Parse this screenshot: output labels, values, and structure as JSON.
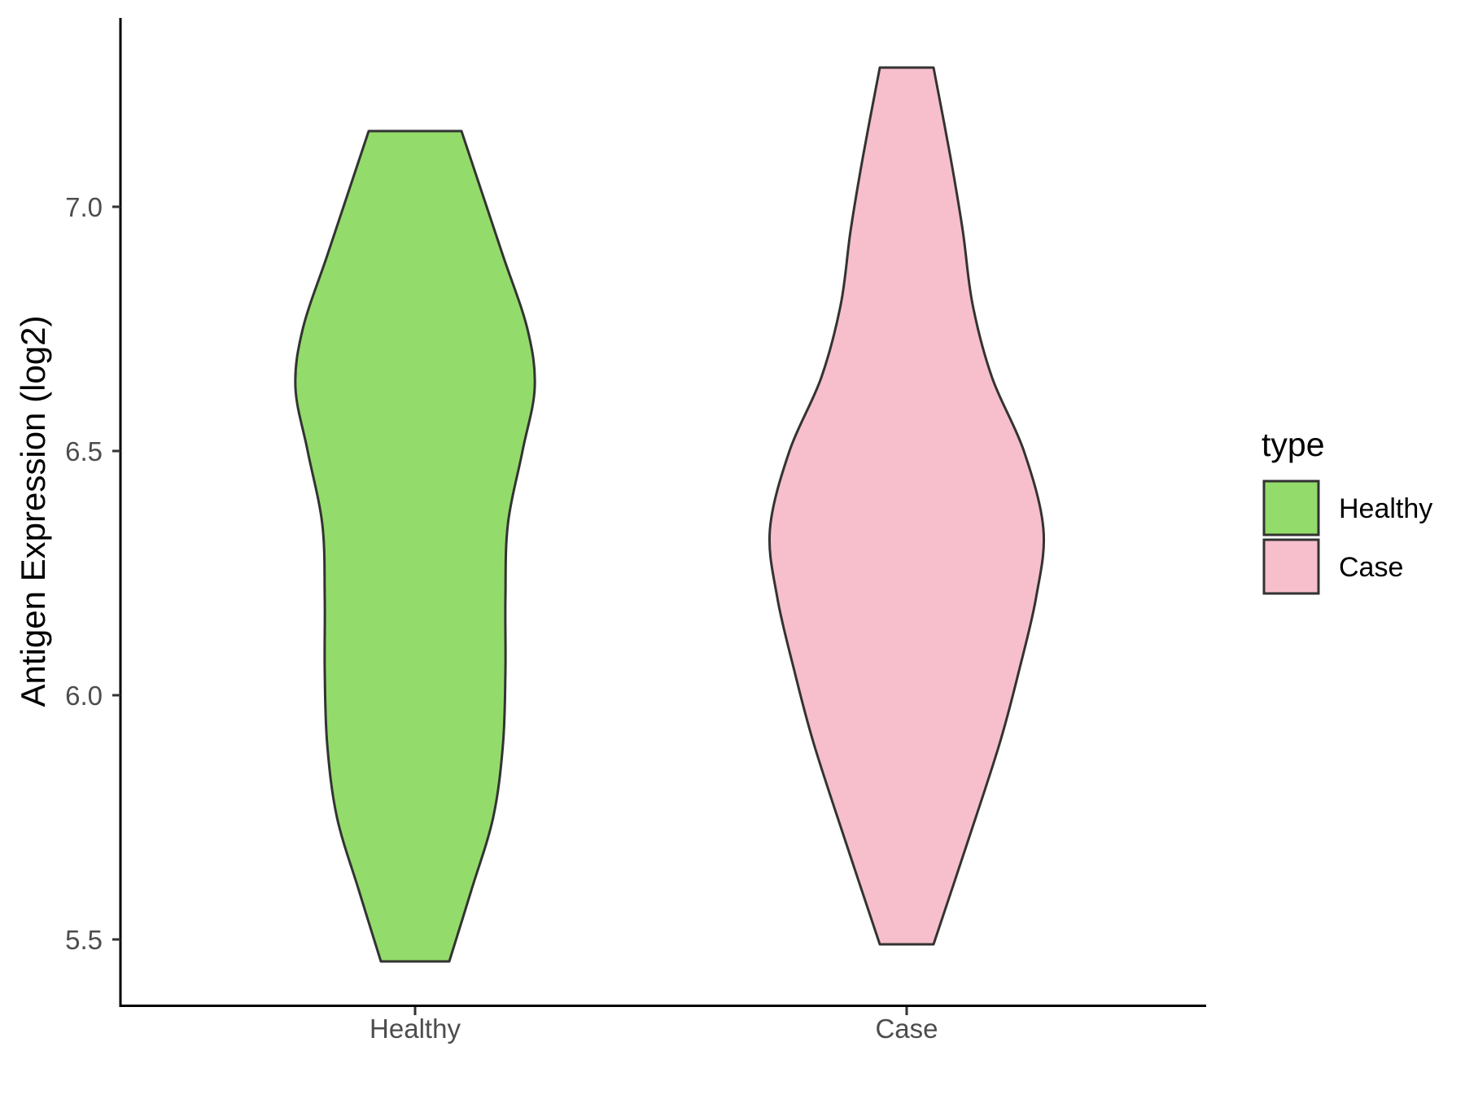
{
  "chart_data": {
    "type": "violin",
    "xlabel": "",
    "ylabel": "Antigen Expression (log2)",
    "ylim": [
      5.37,
      7.38
    ],
    "yticks": [
      "5.5",
      "6.0",
      "6.5",
      "7.0"
    ],
    "categories": [
      "Healthy",
      "Case"
    ],
    "series": [
      {
        "name": "Healthy",
        "color": "#93dc6b",
        "min": 5.455,
        "max": 7.155,
        "density_profile": [
          {
            "y": 5.455,
            "w": 0.14
          },
          {
            "y": 5.6,
            "w": 0.23
          },
          {
            "y": 5.75,
            "w": 0.32
          },
          {
            "y": 5.9,
            "w": 0.36
          },
          {
            "y": 6.05,
            "w": 0.37
          },
          {
            "y": 6.2,
            "w": 0.37
          },
          {
            "y": 6.35,
            "w": 0.38
          },
          {
            "y": 6.5,
            "w": 0.44
          },
          {
            "y": 6.63,
            "w": 0.49
          },
          {
            "y": 6.75,
            "w": 0.46
          },
          {
            "y": 6.9,
            "w": 0.36
          },
          {
            "y": 7.05,
            "w": 0.26
          },
          {
            "y": 7.155,
            "w": 0.19
          }
        ]
      },
      {
        "name": "Case",
        "color": "#f7bfcb",
        "min": 5.49,
        "max": 7.285,
        "density_profile": [
          {
            "y": 5.49,
            "w": 0.11
          },
          {
            "y": 5.7,
            "w": 0.25
          },
          {
            "y": 5.9,
            "w": 0.38
          },
          {
            "y": 6.05,
            "w": 0.46
          },
          {
            "y": 6.2,
            "w": 0.53
          },
          {
            "y": 6.34,
            "w": 0.56
          },
          {
            "y": 6.5,
            "w": 0.48
          },
          {
            "y": 6.65,
            "w": 0.35
          },
          {
            "y": 6.8,
            "w": 0.27
          },
          {
            "y": 6.95,
            "w": 0.23
          },
          {
            "y": 7.1,
            "w": 0.18
          },
          {
            "y": 7.285,
            "w": 0.11
          }
        ]
      }
    ],
    "legend": {
      "title": "type",
      "position": "right",
      "entries": [
        {
          "label": "Healthy",
          "color": "#93dc6b"
        },
        {
          "label": "Case",
          "color": "#f7bfcb"
        }
      ]
    },
    "grid": false
  }
}
